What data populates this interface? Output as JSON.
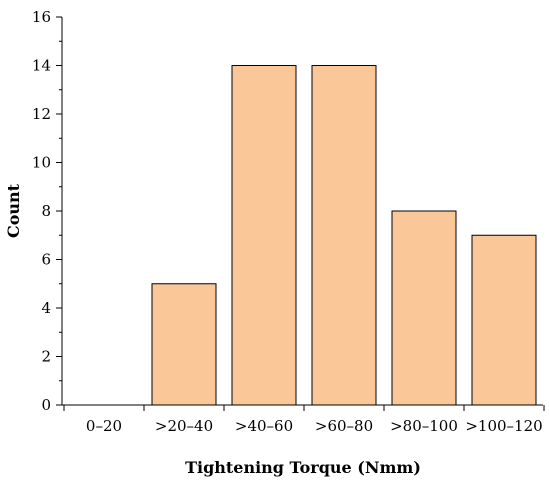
{
  "chart_data": {
    "type": "bar",
    "categories": [
      "0–20",
      ">20–40",
      ">40–60",
      ">60–80",
      ">80–100",
      ">100–120"
    ],
    "values": [
      0,
      5,
      14,
      14,
      8,
      7
    ],
    "xlabel": "Tightening Torque (Nmm)",
    "ylabel": "Count",
    "ylim": [
      0,
      16
    ],
    "yticks": [
      0,
      2,
      4,
      6,
      8,
      10,
      12,
      14,
      16
    ],
    "grid": false,
    "colors": {
      "bar_fill": "#fac898",
      "bar_stroke": "#000000"
    }
  }
}
